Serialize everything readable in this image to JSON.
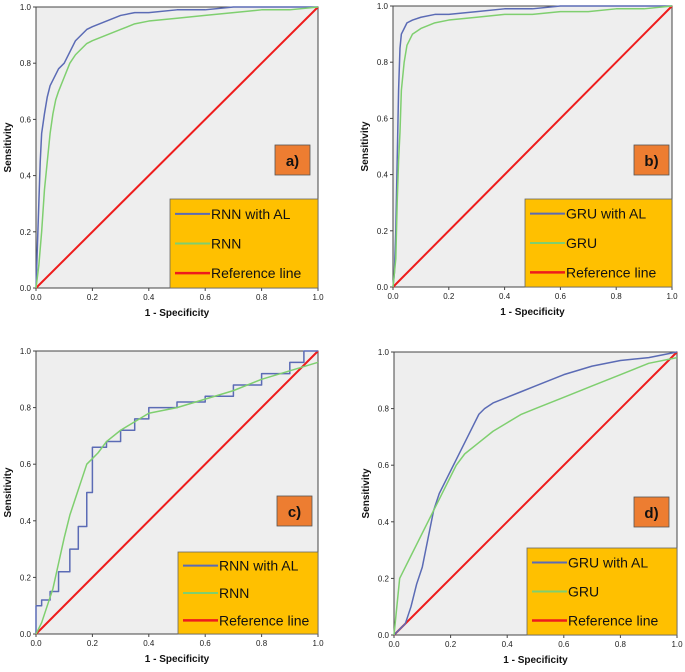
{
  "colors": {
    "plot_bg": "#eeeeee",
    "legend_bg": "#ffc000",
    "panel_label_bg": "#ed7d31",
    "series_with_al": "#5b6bb5",
    "series_base": "#7fcf6f",
    "reference": "#ee1c1c"
  },
  "chart_data": [
    {
      "panel": "a)",
      "type": "line",
      "xlabel": "1 - Specificity",
      "ylabel": "Sensitivity",
      "xlim": [
        0,
        1
      ],
      "ylim": [
        0,
        1
      ],
      "xticks": [
        "0.0",
        "0.2",
        "0.4",
        "0.6",
        "0.8",
        "1.0"
      ],
      "yticks": [
        "0.0",
        "0.2",
        "0.4",
        "0.6",
        "0.8",
        "1.0"
      ],
      "grid": false,
      "legend_position": "bottom-right",
      "series": [
        {
          "name": "RNN with AL",
          "role": "with_al",
          "x": [
            0,
            0.005,
            0.01,
            0.015,
            0.02,
            0.03,
            0.04,
            0.05,
            0.06,
            0.07,
            0.08,
            0.1,
            0.12,
            0.14,
            0.16,
            0.18,
            0.2,
            0.25,
            0.3,
            0.35,
            0.4,
            0.5,
            0.6,
            0.7,
            0.8,
            0.9,
            1.0
          ],
          "y": [
            0,
            0.15,
            0.3,
            0.45,
            0.55,
            0.62,
            0.68,
            0.72,
            0.74,
            0.76,
            0.78,
            0.8,
            0.84,
            0.88,
            0.9,
            0.92,
            0.93,
            0.95,
            0.97,
            0.98,
            0.98,
            0.99,
            0.99,
            1.0,
            1.0,
            1.0,
            1.0
          ]
        },
        {
          "name": "RNN",
          "role": "base",
          "x": [
            0,
            0.01,
            0.02,
            0.03,
            0.04,
            0.05,
            0.06,
            0.07,
            0.08,
            0.1,
            0.12,
            0.14,
            0.16,
            0.18,
            0.2,
            0.25,
            0.3,
            0.35,
            0.4,
            0.5,
            0.6,
            0.7,
            0.8,
            0.9,
            1.0
          ],
          "y": [
            0,
            0.08,
            0.2,
            0.35,
            0.45,
            0.55,
            0.62,
            0.67,
            0.7,
            0.75,
            0.8,
            0.83,
            0.85,
            0.87,
            0.88,
            0.9,
            0.92,
            0.94,
            0.95,
            0.96,
            0.97,
            0.98,
            0.99,
            0.99,
            1.0
          ]
        },
        {
          "name": "Reference line",
          "role": "reference",
          "x": [
            0,
            1
          ],
          "y": [
            0,
            1
          ]
        }
      ]
    },
    {
      "panel": "b)",
      "type": "line",
      "xlabel": "1 - Specificity",
      "ylabel": "Sensitivity",
      "xlim": [
        0,
        1
      ],
      "ylim": [
        0,
        1
      ],
      "xticks": [
        "0.0",
        "0.2",
        "0.4",
        "0.6",
        "0.8",
        "1.0"
      ],
      "yticks": [
        "0.0",
        "0.2",
        "0.4",
        "0.6",
        "0.8",
        "1.0"
      ],
      "grid": false,
      "legend_position": "bottom-right",
      "series": [
        {
          "name": "GRU with AL",
          "role": "with_al",
          "x": [
            0,
            0.005,
            0.01,
            0.015,
            0.02,
            0.025,
            0.03,
            0.04,
            0.05,
            0.07,
            0.1,
            0.15,
            0.2,
            0.3,
            0.4,
            0.5,
            0.6,
            0.7,
            0.8,
            0.9,
            1.0
          ],
          "y": [
            0,
            0.05,
            0.2,
            0.45,
            0.7,
            0.85,
            0.9,
            0.92,
            0.94,
            0.95,
            0.96,
            0.97,
            0.97,
            0.98,
            0.99,
            0.99,
            1.0,
            1.0,
            1.0,
            1.0,
            1.0
          ]
        },
        {
          "name": "GRU",
          "role": "base",
          "x": [
            0,
            0.01,
            0.015,
            0.02,
            0.025,
            0.03,
            0.04,
            0.05,
            0.07,
            0.1,
            0.15,
            0.2,
            0.3,
            0.4,
            0.5,
            0.6,
            0.7,
            0.8,
            0.9,
            1.0
          ],
          "y": [
            0,
            0.1,
            0.3,
            0.45,
            0.55,
            0.7,
            0.8,
            0.86,
            0.9,
            0.92,
            0.94,
            0.95,
            0.96,
            0.97,
            0.97,
            0.98,
            0.98,
            0.99,
            0.99,
            1.0
          ]
        },
        {
          "name": "Reference line",
          "role": "reference",
          "x": [
            0,
            1
          ],
          "y": [
            0,
            1
          ]
        }
      ]
    },
    {
      "panel": "c)",
      "type": "line",
      "xlabel": "1 - Specificity",
      "ylabel": "Sensitivity",
      "xlim": [
        0,
        1
      ],
      "ylim": [
        0,
        1
      ],
      "xticks": [
        "0.0",
        "0.2",
        "0.4",
        "0.6",
        "0.8",
        "1.0"
      ],
      "yticks": [
        "0.0",
        "0.2",
        "0.4",
        "0.6",
        "0.8",
        "1.0"
      ],
      "grid": false,
      "legend_position": "bottom-right",
      "series": [
        {
          "name": "RNN with AL",
          "role": "with_al",
          "x": [
            0,
            0,
            0.02,
            0.02,
            0.05,
            0.05,
            0.08,
            0.08,
            0.12,
            0.12,
            0.15,
            0.15,
            0.18,
            0.18,
            0.2,
            0.2,
            0.25,
            0.25,
            0.3,
            0.3,
            0.35,
            0.35,
            0.4,
            0.4,
            0.5,
            0.5,
            0.6,
            0.6,
            0.7,
            0.7,
            0.8,
            0.8,
            0.9,
            0.9,
            0.95,
            0.95,
            1.0
          ],
          "y": [
            0,
            0.1,
            0.1,
            0.12,
            0.12,
            0.15,
            0.15,
            0.22,
            0.22,
            0.3,
            0.3,
            0.38,
            0.38,
            0.5,
            0.5,
            0.66,
            0.66,
            0.68,
            0.68,
            0.72,
            0.72,
            0.76,
            0.76,
            0.8,
            0.8,
            0.82,
            0.82,
            0.84,
            0.84,
            0.88,
            0.88,
            0.92,
            0.92,
            0.96,
            0.96,
            1.0,
            1.0
          ]
        },
        {
          "name": "RNN",
          "role": "base",
          "x": [
            0,
            0.02,
            0.04,
            0.06,
            0.08,
            0.1,
            0.12,
            0.14,
            0.16,
            0.18,
            0.2,
            0.22,
            0.25,
            0.3,
            0.35,
            0.4,
            0.5,
            0.6,
            0.7,
            0.8,
            0.9,
            1.0
          ],
          "y": [
            0,
            0.04,
            0.1,
            0.16,
            0.25,
            0.34,
            0.42,
            0.48,
            0.54,
            0.6,
            0.62,
            0.64,
            0.68,
            0.72,
            0.75,
            0.78,
            0.8,
            0.83,
            0.86,
            0.9,
            0.93,
            0.96
          ]
        },
        {
          "name": "Reference line",
          "role": "reference",
          "x": [
            0,
            1
          ],
          "y": [
            0,
            1
          ]
        }
      ]
    },
    {
      "panel": "d)",
      "type": "line",
      "xlabel": "1 - Specificity",
      "ylabel": "Sensitivity",
      "xlim": [
        0,
        1
      ],
      "ylim": [
        0,
        1
      ],
      "xticks": [
        "0.0",
        "0.2",
        "0.4",
        "0.6",
        "0.8",
        "1.0"
      ],
      "yticks": [
        "0.0",
        "0.2",
        "0.4",
        "0.6",
        "0.8",
        "1.0"
      ],
      "grid": false,
      "legend_position": "bottom-right",
      "series": [
        {
          "name": "GRU with AL",
          "role": "with_al",
          "x": [
            0,
            0.02,
            0.04,
            0.06,
            0.08,
            0.1,
            0.12,
            0.14,
            0.16,
            0.18,
            0.2,
            0.22,
            0.25,
            0.28,
            0.3,
            0.32,
            0.35,
            0.4,
            0.45,
            0.5,
            0.55,
            0.6,
            0.7,
            0.8,
            0.9,
            1.0
          ],
          "y": [
            0,
            0.02,
            0.04,
            0.1,
            0.18,
            0.24,
            0.34,
            0.44,
            0.5,
            0.54,
            0.58,
            0.62,
            0.68,
            0.74,
            0.78,
            0.8,
            0.82,
            0.84,
            0.86,
            0.88,
            0.9,
            0.92,
            0.95,
            0.97,
            0.98,
            1.0
          ]
        },
        {
          "name": "GRU",
          "role": "base",
          "x": [
            0,
            0.02,
            0.04,
            0.06,
            0.08,
            0.1,
            0.12,
            0.14,
            0.16,
            0.18,
            0.2,
            0.22,
            0.25,
            0.3,
            0.35,
            0.4,
            0.45,
            0.5,
            0.6,
            0.7,
            0.8,
            0.9,
            1.0
          ],
          "y": [
            0,
            0.2,
            0.24,
            0.28,
            0.32,
            0.36,
            0.4,
            0.44,
            0.48,
            0.52,
            0.56,
            0.6,
            0.64,
            0.68,
            0.72,
            0.75,
            0.78,
            0.8,
            0.84,
            0.88,
            0.92,
            0.96,
            0.98
          ]
        },
        {
          "name": "Reference line",
          "role": "reference",
          "x": [
            0,
            1
          ],
          "y": [
            0,
            1
          ]
        }
      ]
    }
  ]
}
